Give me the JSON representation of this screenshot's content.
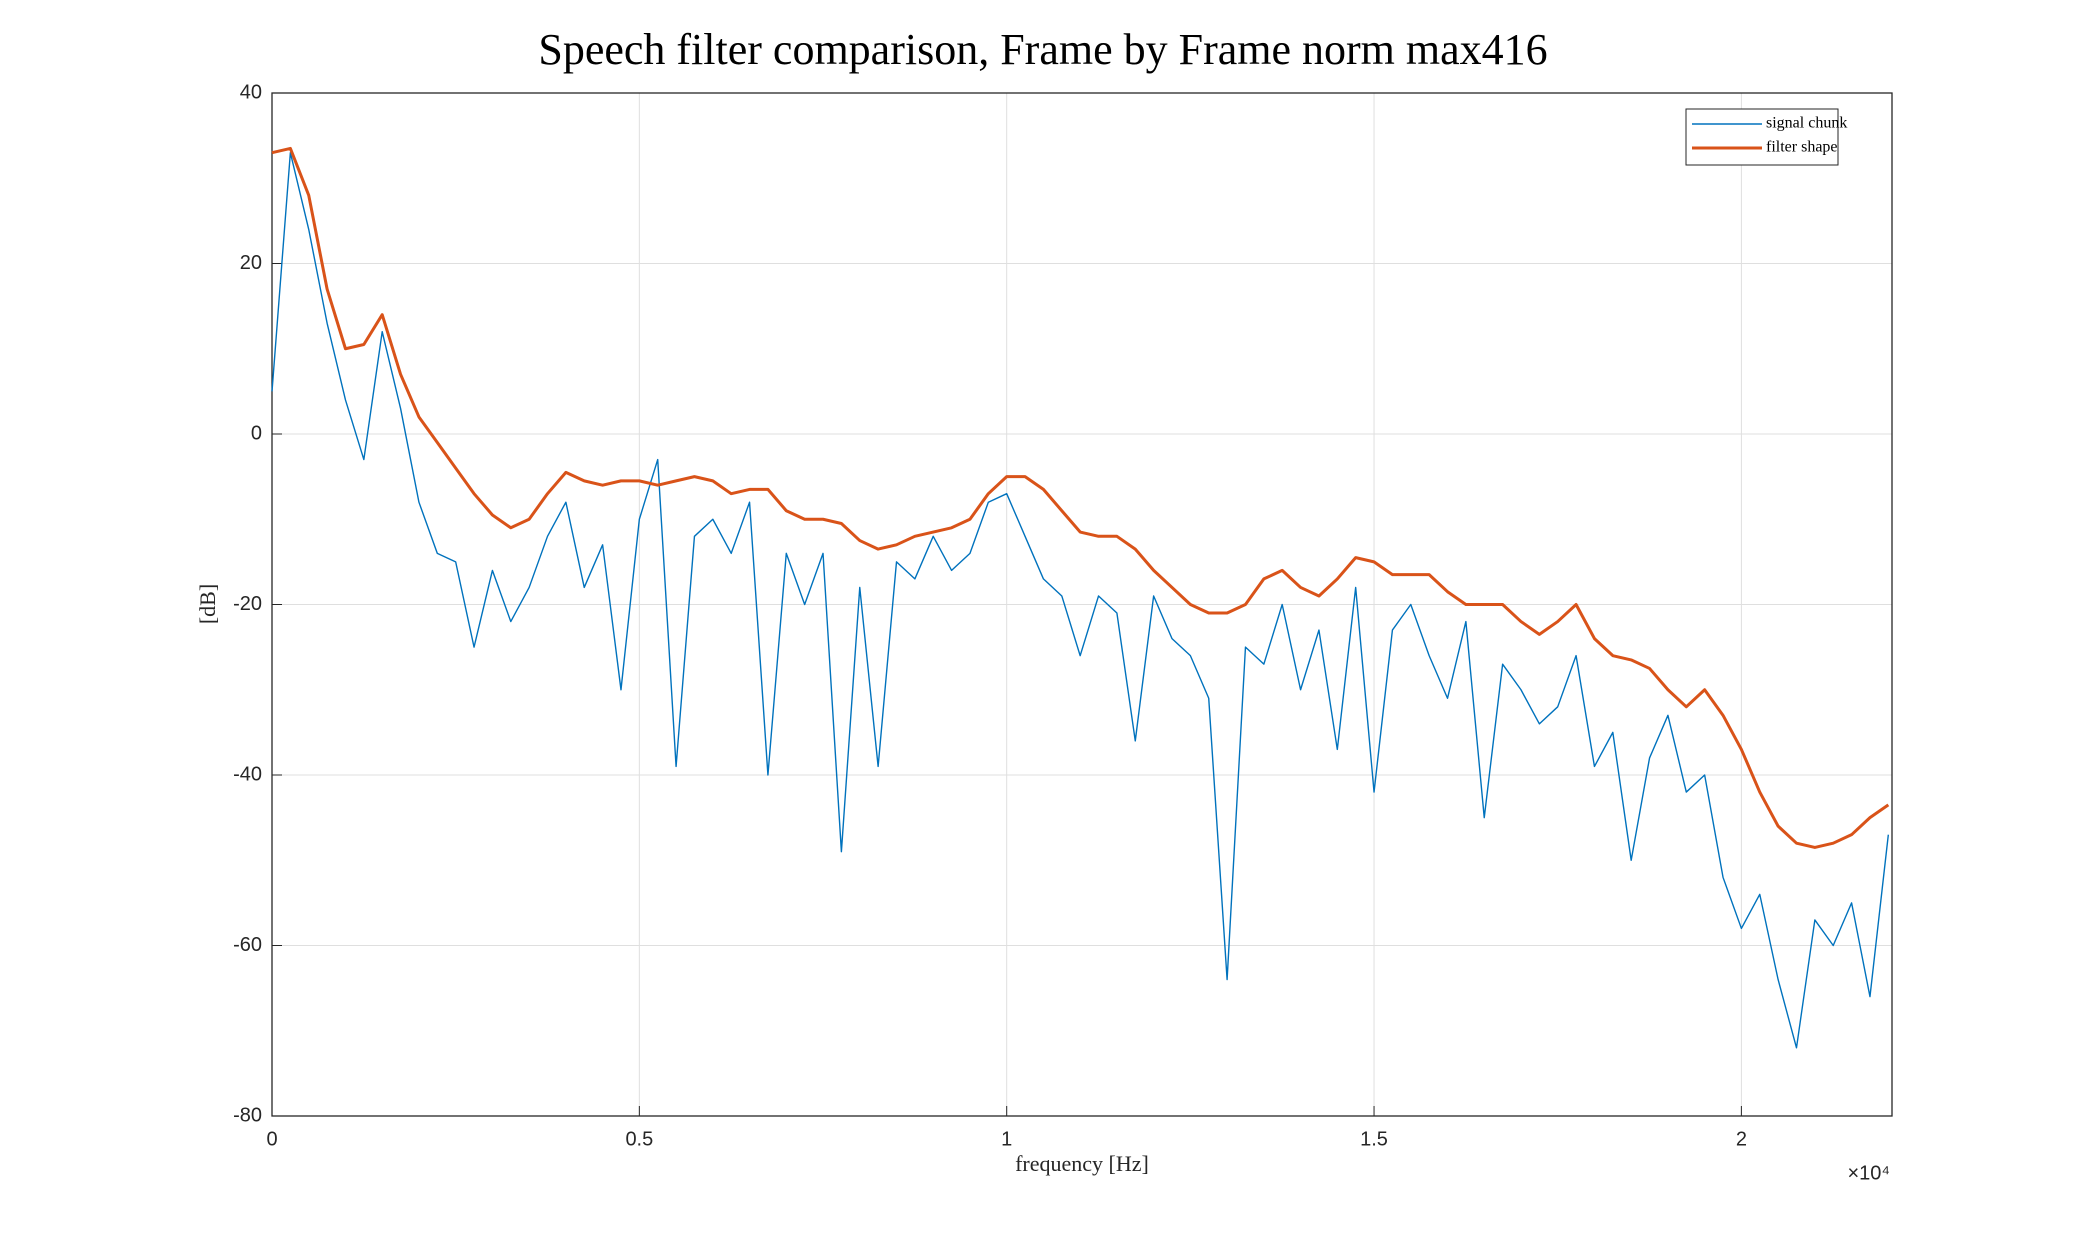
{
  "chart_data": {
    "type": "line",
    "title": "Speech filter comparison, Frame by Frame norm max416",
    "x_label": "frequency [Hz]",
    "y_label": "[dB]",
    "x_exponent_label": "×10⁴",
    "x": [
      0,
      250,
      500,
      750,
      1000,
      1250,
      1500,
      1750,
      2000,
      2250,
      2500,
      2750,
      3000,
      3250,
      3500,
      3750,
      4000,
      4250,
      4500,
      4750,
      5000,
      5250,
      5500,
      5750,
      6000,
      6250,
      6500,
      6750,
      7000,
      7250,
      7500,
      7750,
      8000,
      8250,
      8500,
      8750,
      9000,
      9250,
      9500,
      9750,
      10000,
      10250,
      10500,
      10750,
      11000,
      11250,
      11500,
      11750,
      12000,
      12250,
      12500,
      12750,
      13000,
      13250,
      13500,
      13750,
      14000,
      14250,
      14500,
      14750,
      15000,
      15250,
      15500,
      15750,
      16000,
      16250,
      16500,
      16750,
      17000,
      17250,
      17500,
      17750,
      18000,
      18250,
      18500,
      18750,
      19000,
      19250,
      19500,
      19750,
      20000,
      20250,
      20500,
      20750,
      21000,
      21250,
      21500,
      21750,
      22000
    ],
    "series": [
      {
        "name": "signal chunk",
        "color": "#0072bd",
        "width": 1.4,
        "values": [
          5,
          33,
          24,
          13,
          4,
          -3,
          12,
          3,
          -8,
          -14,
          -15,
          -25,
          -16,
          -22,
          -18,
          -12,
          -8,
          -18,
          -13,
          -30,
          -10,
          -3,
          -39,
          -12,
          -10,
          -14,
          -8,
          -40,
          -14,
          -20,
          -14,
          -49,
          -18,
          -39,
          -15,
          -17,
          -12,
          -16,
          -14,
          -8,
          -7,
          -12,
          -17,
          -19,
          -26,
          -19,
          -21,
          -36,
          -19,
          -24,
          -26,
          -31,
          -64,
          -25,
          -27,
          -20,
          -30,
          -23,
          -37,
          -18,
          -42,
          -23,
          -20,
          -26,
          -31,
          -22,
          -45,
          -27,
          -30,
          -34,
          -32,
          -26,
          -39,
          -35,
          -50,
          -38,
          -33,
          -42,
          -40,
          -52,
          -58,
          -54,
          -64,
          -72,
          -57,
          -60,
          -55,
          -66,
          -47
        ]
      },
      {
        "name": "filter shape",
        "color": "#d95319",
        "width": 3,
        "values": [
          33,
          33.5,
          28,
          17,
          10,
          10.5,
          14,
          7,
          2,
          -1,
          -4,
          -7,
          -9.5,
          -11,
          -10,
          -7,
          -4.5,
          -5.5,
          -6,
          -5.5,
          -5.5,
          -6,
          -5.5,
          -5,
          -5.5,
          -7,
          -6.5,
          -6.5,
          -9,
          -10,
          -10,
          -10.5,
          -12.5,
          -13.5,
          -13,
          -12,
          -11.5,
          -11,
          -10,
          -7,
          -5,
          -5,
          -6.5,
          -9,
          -11.5,
          -12,
          -12,
          -13.5,
          -16,
          -18,
          -20,
          -21,
          -21,
          -20,
          -17,
          -16,
          -18,
          -19,
          -17,
          -14.5,
          -15,
          -16.5,
          -16.5,
          -16.5,
          -18.5,
          -20,
          -20,
          -20,
          -22,
          -23.5,
          -22,
          -20,
          -24,
          -26,
          -26.5,
          -27.5,
          -30,
          -32,
          -30,
          -33,
          -37,
          -42,
          -46,
          -48,
          -48.5,
          -48,
          -47,
          -45,
          -43.5
        ]
      }
    ],
    "xlim": [
      0,
      22050
    ],
    "ylim": [
      -80,
      40
    ],
    "xticks": [
      {
        "value": 0,
        "label": "0"
      },
      {
        "value": 5000,
        "label": "0.5"
      },
      {
        "value": 10000,
        "label": "1"
      },
      {
        "value": 15000,
        "label": "1.5"
      },
      {
        "value": 20000,
        "label": "2"
      }
    ],
    "yticks": [
      -80,
      -60,
      -40,
      -20,
      0,
      20,
      40
    ],
    "grid": true,
    "legend": "northeast"
  }
}
